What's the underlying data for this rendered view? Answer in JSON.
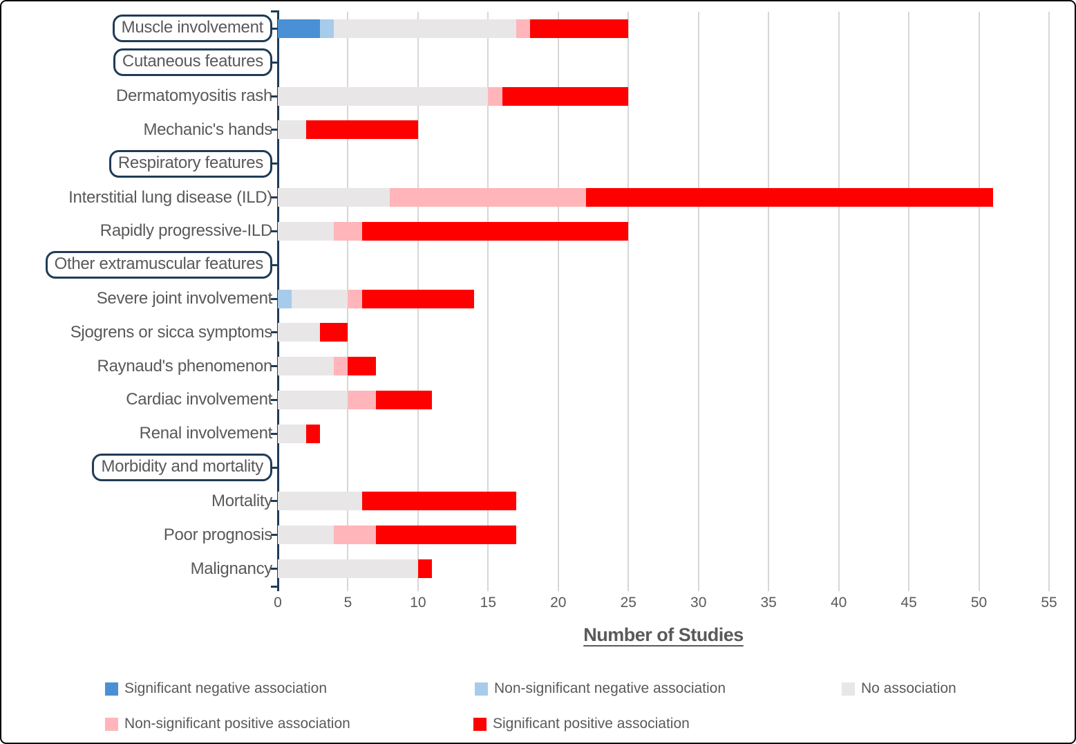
{
  "chart_data": {
    "type": "bar",
    "orientation": "horizontal",
    "stacked": true,
    "title": "",
    "xlabel": "Number of Studies",
    "ylabel": "",
    "xlim": [
      0,
      55
    ],
    "xticks": [
      0,
      5,
      10,
      15,
      20,
      25,
      30,
      35,
      40,
      45,
      50,
      55
    ],
    "grid": "vertical",
    "legend_position": "bottom",
    "series": [
      {
        "key": "sig_neg",
        "name": "Significant negative association",
        "color": "#4A90D5"
      },
      {
        "key": "nonsig_neg",
        "name": "Non-significant negative association",
        "color": "#A7CBEB"
      },
      {
        "key": "no_assoc",
        "name": "No association",
        "color": "#E8E6E6"
      },
      {
        "key": "nonsig_pos",
        "name": "Non-significant positive association",
        "color": "#FFB5BA"
      },
      {
        "key": "sig_pos",
        "name": "Significant positive association",
        "color": "#FF0000"
      }
    ],
    "categories": [
      {
        "label": "Muscle involvement",
        "boxed": true,
        "values": [
          3,
          1,
          13,
          1,
          7
        ]
      },
      {
        "label": "Cutaneous features",
        "boxed": true,
        "values": [
          0,
          0,
          0,
          0,
          0
        ]
      },
      {
        "label": "Dermatomyositis rash",
        "boxed": false,
        "values": [
          0,
          0,
          15,
          1,
          9
        ]
      },
      {
        "label": "Mechanic's hands",
        "boxed": false,
        "values": [
          0,
          0,
          2,
          0,
          8
        ]
      },
      {
        "label": "Respiratory features",
        "boxed": true,
        "values": [
          0,
          0,
          0,
          0,
          0
        ]
      },
      {
        "label": "Interstitial lung disease (ILD)",
        "boxed": false,
        "values": [
          0,
          0,
          8,
          14,
          29
        ]
      },
      {
        "label": "Rapidly progressive-ILD",
        "boxed": false,
        "values": [
          0,
          0,
          4,
          2,
          19
        ]
      },
      {
        "label": "Other extramuscular features",
        "boxed": true,
        "values": [
          0,
          0,
          0,
          0,
          0
        ]
      },
      {
        "label": "Severe joint involvement",
        "boxed": false,
        "values": [
          0,
          1,
          4,
          1,
          8
        ]
      },
      {
        "label": "Sjogrens or sicca symptoms",
        "boxed": false,
        "values": [
          0,
          0,
          3,
          0,
          2
        ]
      },
      {
        "label": "Raynaud's phenomenon",
        "boxed": false,
        "values": [
          0,
          0,
          4,
          1,
          2
        ]
      },
      {
        "label": "Cardiac involvement",
        "boxed": false,
        "values": [
          0,
          0,
          5,
          2,
          4
        ]
      },
      {
        "label": "Renal involvement",
        "boxed": false,
        "values": [
          0,
          0,
          2,
          0,
          1
        ]
      },
      {
        "label": "Morbidity and mortality",
        "boxed": true,
        "values": [
          0,
          0,
          0,
          0,
          0
        ]
      },
      {
        "label": "Mortality",
        "boxed": false,
        "values": [
          0,
          0,
          6,
          0,
          11
        ]
      },
      {
        "label": "Poor prognosis",
        "boxed": false,
        "values": [
          0,
          0,
          4,
          3,
          10
        ]
      },
      {
        "label": "Malignancy",
        "boxed": false,
        "values": [
          0,
          0,
          10,
          0,
          1
        ]
      }
    ]
  },
  "colors": {
    "axis": "#1F3B57",
    "gridline": "#D6D6D6",
    "text": "#595959",
    "frame_border": "#000000",
    "background": "#FFFFFF"
  }
}
